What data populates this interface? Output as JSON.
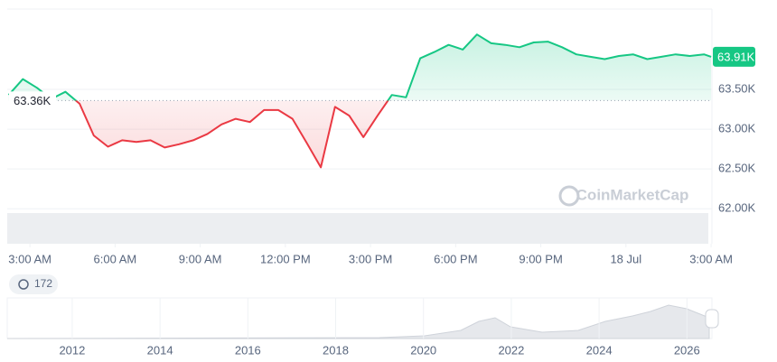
{
  "chart_data": {
    "type": "line",
    "x": [
      -0.75,
      -0.25,
      0.25,
      0.75,
      1.25,
      1.75,
      2.25,
      2.75,
      3.25,
      3.75,
      4.25,
      4.75,
      5.25,
      5.75,
      6.25,
      6.75,
      7.25,
      7.75,
      8.25,
      8.75,
      9.25,
      9.75,
      10.25,
      10.75,
      11.25,
      11.75,
      12.25,
      12.75,
      13.25,
      13.75,
      14.25,
      14.75,
      15.25,
      15.75,
      16.25,
      16.75,
      17.25,
      17.75,
      18.25,
      18.75,
      19.25,
      19.75,
      20.25,
      20.75,
      21.25,
      21.75,
      22.25,
      22.75,
      23.25,
      23.75,
      24
    ],
    "values": [
      63.43,
      63.63,
      63.52,
      63.38,
      63.47,
      63.32,
      62.92,
      62.78,
      62.86,
      62.84,
      62.86,
      62.77,
      62.81,
      62.86,
      62.94,
      63.06,
      63.13,
      63.09,
      63.24,
      63.24,
      63.13,
      62.83,
      62.52,
      63.28,
      63.17,
      62.9,
      63.17,
      63.43,
      63.4,
      63.89,
      63.97,
      64.06,
      64.0,
      64.19,
      64.08,
      64.06,
      64.03,
      64.09,
      64.1,
      64.03,
      63.94,
      63.91,
      63.88,
      63.92,
      63.94,
      63.88,
      63.91,
      63.94,
      63.92,
      63.94,
      63.91
    ],
    "colors": {
      "above": "#16c784",
      "below": "#ea3943"
    },
    "xlim": [
      -0.8,
      24.03
    ],
    "xticks": [
      {
        "value": 0,
        "label": "3:00 AM"
      },
      {
        "value": 3,
        "label": "6:00 AM"
      },
      {
        "value": 6,
        "label": "9:00 AM"
      },
      {
        "value": 9,
        "label": "12:00 PM"
      },
      {
        "value": 12,
        "label": "3:00 PM"
      },
      {
        "value": 15,
        "label": "6:00 PM"
      },
      {
        "value": 18,
        "label": "9:00 PM"
      },
      {
        "value": 21,
        "label": "18 Jul"
      },
      {
        "value": 24,
        "label": "3:00 AM"
      }
    ],
    "ylim": [
      61.56,
      64.51
    ],
    "yticks": [
      {
        "value": 62.0,
        "label": "62.00K"
      },
      {
        "value": 62.5,
        "label": "62.50K"
      },
      {
        "value": 63.0,
        "label": "63.00K"
      },
      {
        "value": 63.5,
        "label": "63.50K"
      }
    ],
    "grid": true,
    "reference": {
      "value": 63.36,
      "label": "63.36K"
    },
    "current": {
      "value": 63.91,
      "label": "63.91K"
    },
    "watermark": "CoinMarketCap"
  },
  "navigator": {
    "badge": "172",
    "xlim": [
      2010.52,
      2026.57
    ],
    "xticks": [
      2012,
      2014,
      2016,
      2018,
      2020,
      2022,
      2024,
      2026
    ]
  }
}
